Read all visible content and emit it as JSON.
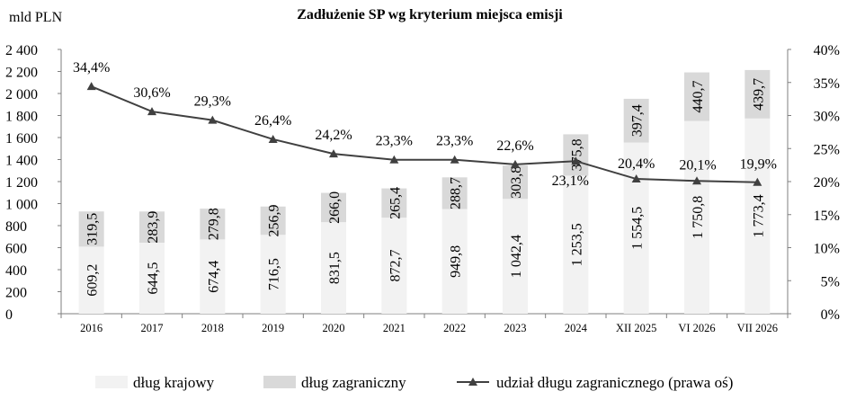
{
  "chart_data": {
    "type": "bar",
    "title": "Zadłużenie SP wg kryterium miejsca emisji",
    "ylabel": "mld PLN",
    "categories": [
      "2016",
      "2017",
      "2018",
      "2019",
      "2020",
      "2021",
      "2022",
      "2023",
      "2024",
      "XII 2025",
      "VI 2026",
      "VII 2026"
    ],
    "series": [
      {
        "name": "dług krajowy",
        "type": "bar",
        "stack": "total",
        "color": "#f2f2f2",
        "values": [
          609.2,
          644.5,
          674.4,
          716.5,
          831.5,
          872.7,
          949.8,
          1042.4,
          1253.5,
          1554.5,
          1750.8,
          1773.4
        ],
        "labels": [
          "609,2",
          "644,5",
          "674,4",
          "716,5",
          "831,5",
          "872,7",
          "949,8",
          "1 042,4",
          "1 253,5",
          "1 554,5",
          "1 750,8",
          "1 773,4"
        ]
      },
      {
        "name": "dług zagraniczny",
        "type": "bar",
        "stack": "total",
        "color": "#d9d9d9",
        "values": [
          319.5,
          283.9,
          279.8,
          256.9,
          266.0,
          265.4,
          288.7,
          303.8,
          375.8,
          397.4,
          440.7,
          439.7
        ],
        "labels": [
          "319,5",
          "283,9",
          "279,8",
          "256,9",
          "266,0",
          "265,4",
          "288,7",
          "303,8",
          "375,8",
          "397,4",
          "440,7",
          "439,7"
        ]
      },
      {
        "name": "udział długu zagranicznego (prawa oś)",
        "type": "line",
        "axis": "right",
        "color": "#404040",
        "marker": "triangle",
        "values": [
          34.4,
          30.6,
          29.3,
          26.4,
          24.2,
          23.3,
          23.3,
          22.6,
          23.1,
          20.4,
          20.1,
          19.9
        ],
        "labels": [
          "34,4%",
          "30,6%",
          "29,3%",
          "26,4%",
          "24,2%",
          "23,3%",
          "23,3%",
          "22,6%",
          "23,1%",
          "20,4%",
          "20,1%",
          "19,9%"
        ]
      }
    ],
    "ylim": [
      0,
      2400
    ],
    "yticks": [
      0,
      200,
      400,
      600,
      800,
      1000,
      1200,
      1400,
      1600,
      1800,
      2000,
      2200,
      2400
    ],
    "ytick_labels": [
      "0",
      "200",
      "400",
      "600",
      "800",
      "1 000",
      "1 200",
      "1 400",
      "1 600",
      "1 800",
      "2 000",
      "2 200",
      "2 400"
    ],
    "y2lim": [
      0,
      40
    ],
    "y2ticks": [
      0,
      5,
      10,
      15,
      20,
      25,
      30,
      35,
      40
    ],
    "y2tick_labels": [
      "0%",
      "5%",
      "10%",
      "15%",
      "20%",
      "25%",
      "30%",
      "35%",
      "40%"
    ],
    "grid": false,
    "legend_position": "bottom"
  }
}
